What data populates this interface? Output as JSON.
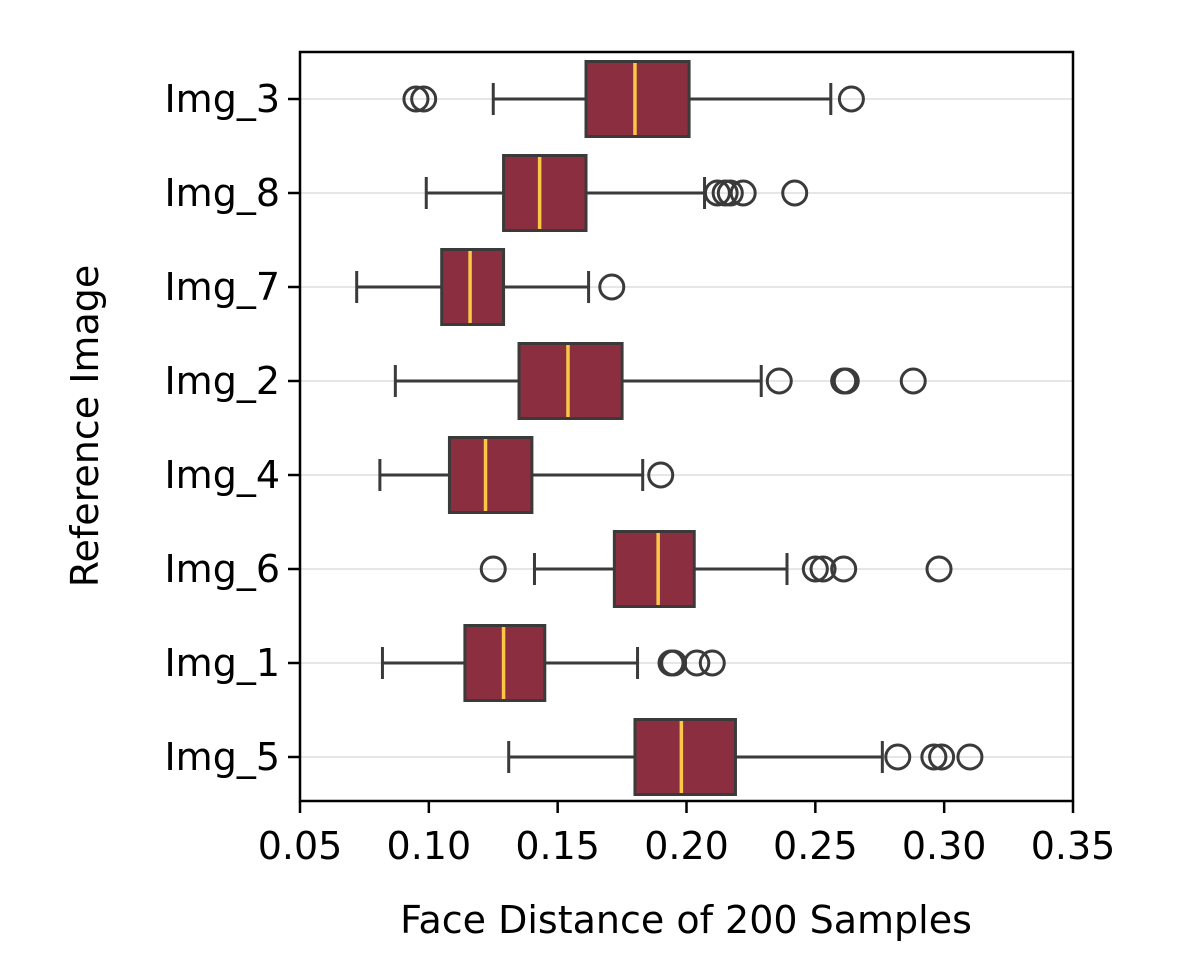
{
  "chart_data": {
    "type": "boxplot",
    "orientation": "horizontal",
    "xlabel": "Face Distance of 200 Samples",
    "ylabel": "Reference Image",
    "xlim": [
      0.05,
      0.35
    ],
    "xticks": [
      "0.05",
      "0.10",
      "0.15",
      "0.20",
      "0.25",
      "0.30",
      "0.35"
    ],
    "grid": "horizontal lines at categories",
    "colors": {
      "box": "#8B2E3F",
      "median": "#F9C846",
      "outline": "#3A3A3A",
      "grid": "#DDDDDD"
    },
    "categories": [
      "Img_3",
      "Img_8",
      "Img_7",
      "Img_2",
      "Img_4",
      "Img_6",
      "Img_1",
      "Img_5"
    ],
    "boxes": [
      {
        "label": "Img_3",
        "whisker_low": 0.125,
        "q1": 0.161,
        "median": 0.18,
        "q3": 0.201,
        "whisker_high": 0.256,
        "outliers": [
          0.095,
          0.098,
          0.264
        ]
      },
      {
        "label": "Img_8",
        "whisker_low": 0.099,
        "q1": 0.129,
        "median": 0.143,
        "q3": 0.161,
        "whisker_high": 0.207,
        "outliers": [
          0.212,
          0.215,
          0.217,
          0.222,
          0.242
        ]
      },
      {
        "label": "Img_7",
        "whisker_low": 0.072,
        "q1": 0.105,
        "median": 0.116,
        "q3": 0.129,
        "whisker_high": 0.162,
        "outliers": [
          0.171
        ]
      },
      {
        "label": "Img_2",
        "whisker_low": 0.087,
        "q1": 0.135,
        "median": 0.154,
        "q3": 0.175,
        "whisker_high": 0.229,
        "outliers": [
          0.236,
          0.261,
          0.262,
          0.288
        ]
      },
      {
        "label": "Img_4",
        "whisker_low": 0.081,
        "q1": 0.108,
        "median": 0.122,
        "q3": 0.14,
        "whisker_high": 0.183,
        "outliers": [
          0.19
        ]
      },
      {
        "label": "Img_6",
        "whisker_low": 0.141,
        "q1": 0.172,
        "median": 0.189,
        "q3": 0.203,
        "whisker_high": 0.239,
        "outliers": [
          0.125,
          0.25,
          0.253,
          0.261,
          0.298
        ]
      },
      {
        "label": "Img_1",
        "whisker_low": 0.082,
        "q1": 0.114,
        "median": 0.129,
        "q3": 0.145,
        "whisker_high": 0.181,
        "outliers": [
          0.194,
          0.195,
          0.204,
          0.21
        ]
      },
      {
        "label": "Img_5",
        "whisker_low": 0.131,
        "q1": 0.18,
        "median": 0.198,
        "q3": 0.219,
        "whisker_high": 0.276,
        "outliers": [
          0.282,
          0.296,
          0.299,
          0.31
        ]
      }
    ]
  }
}
